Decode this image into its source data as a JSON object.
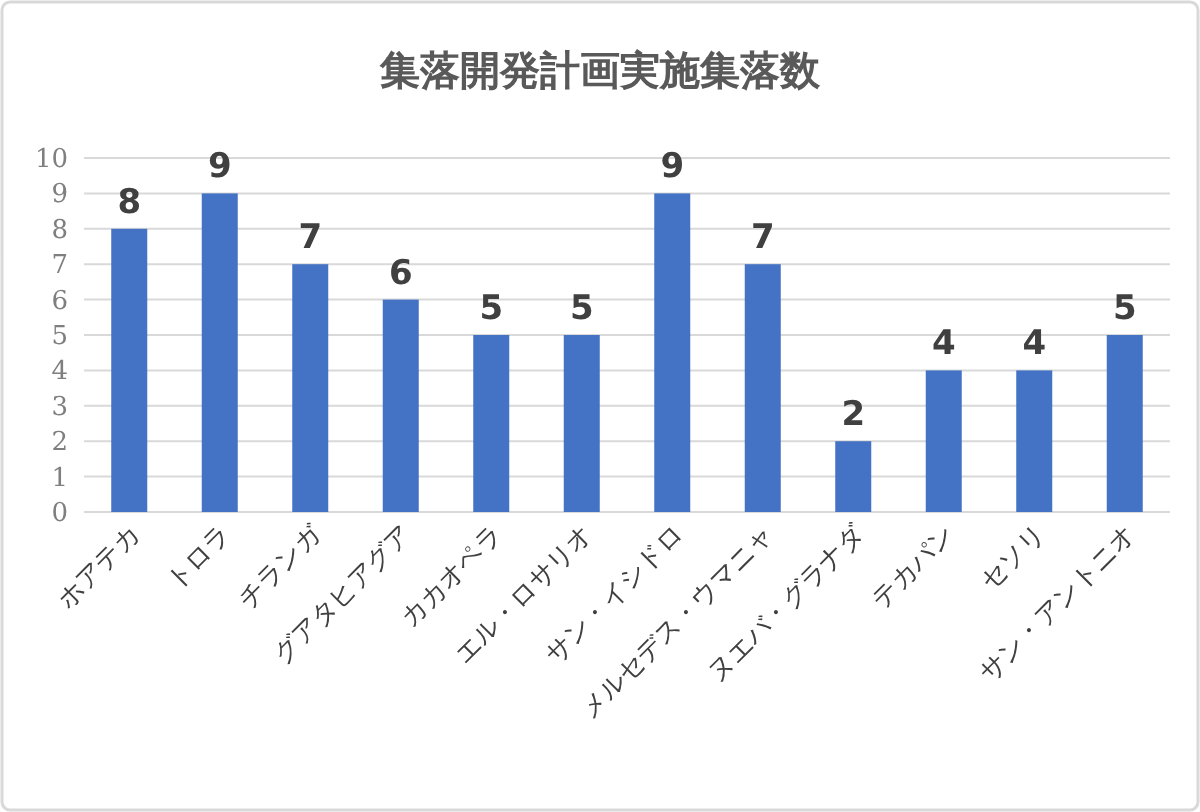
{
  "chart_data": {
    "type": "bar",
    "title": "集落開発計画実施集落数",
    "categories": [
      "ホアテカ",
      "トロラ",
      "チランガ",
      "グアタヒアグア",
      "カカオペラ",
      "エル・ロサリオ",
      "サン・イシドロ",
      "メルセデス・ウマニャ",
      "ヌエバ・グラナダ",
      "テカパン",
      "セソリ",
      "サン・アントニオ"
    ],
    "values": [
      8,
      9,
      7,
      6,
      5,
      5,
      9,
      7,
      2,
      4,
      4,
      5
    ],
    "color": "#4472c4",
    "ylim": [
      0,
      10
    ],
    "yticks": [
      0,
      1,
      2,
      3,
      4,
      5,
      6,
      7,
      8,
      9,
      10
    ],
    "grid": "y",
    "data_labels": true
  }
}
